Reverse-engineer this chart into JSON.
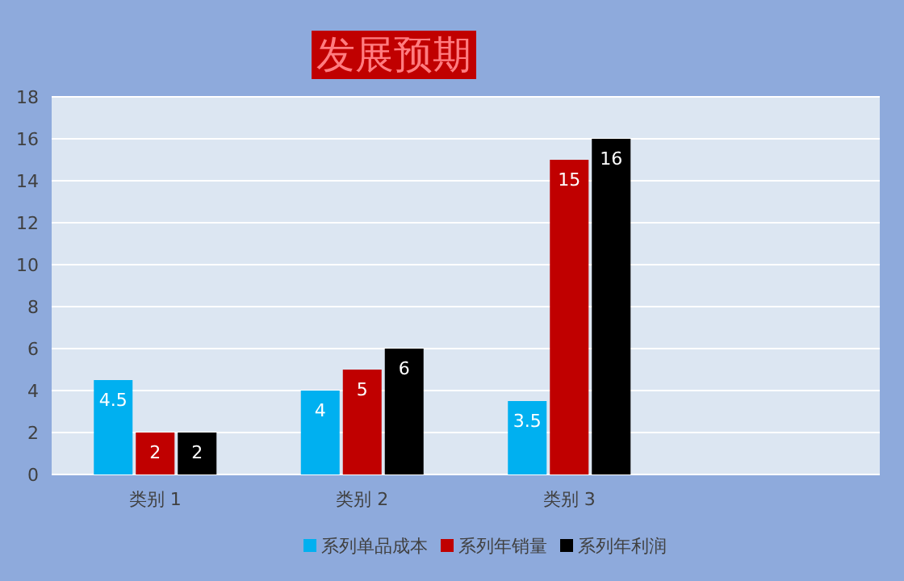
{
  "chart_data": {
    "type": "bar",
    "title": "发展预期",
    "categories": [
      "类别 1",
      "类别 2",
      "类别 3",
      null
    ],
    "series": [
      {
        "name": "系列单品成本",
        "color": "#00b0f0",
        "values": [
          4.5,
          4,
          3.5,
          null
        ]
      },
      {
        "name": "系列年销量",
        "color": "#c00000",
        "values": [
          2,
          5,
          15,
          null
        ]
      },
      {
        "name": "系列年利润",
        "color": "#000000",
        "values": [
          2,
          6,
          16,
          null
        ]
      }
    ],
    "ylim": [
      0,
      18
    ],
    "yticks": [
      0,
      2,
      4,
      6,
      8,
      10,
      12,
      14,
      16,
      18
    ],
    "grid": "y",
    "legend": "bottom",
    "data_labels": true
  }
}
